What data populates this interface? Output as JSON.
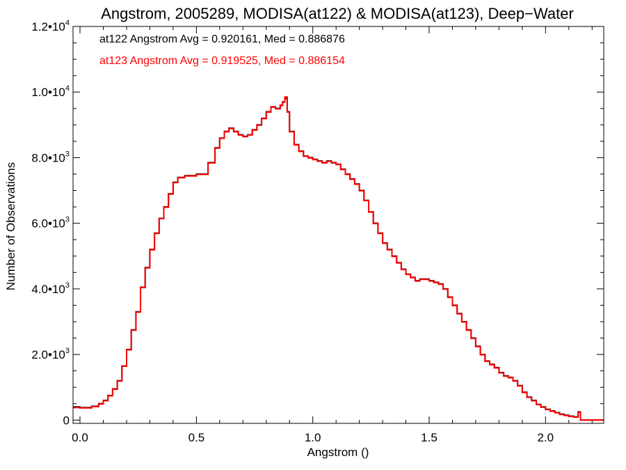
{
  "chart_data": {
    "type": "line",
    "step": true,
    "title": "Angstrom, 2005289, MODISA(at122) & MODISA(at123), Deep−Water",
    "xlabel": "Angstrom ()",
    "ylabel": "Number of Observations",
    "xlim": [
      -0.03,
      2.25
    ],
    "ylim": [
      -100,
      12000
    ],
    "x_ticks": [
      {
        "value": 0.0,
        "label": "0.0"
      },
      {
        "value": 0.5,
        "label": "0.5"
      },
      {
        "value": 1.0,
        "label": "1.0"
      },
      {
        "value": 1.5,
        "label": "1.5"
      },
      {
        "value": 2.0,
        "label": "2.0"
      }
    ],
    "y_ticks": [
      {
        "value": 0,
        "label": "0",
        "exp": ""
      },
      {
        "value": 2000,
        "label": "2.0•10",
        "exp": "3"
      },
      {
        "value": 4000,
        "label": "4.0•10",
        "exp": "3"
      },
      {
        "value": 6000,
        "label": "6.0•10",
        "exp": "3"
      },
      {
        "value": 8000,
        "label": "8.0•10",
        "exp": "3"
      },
      {
        "value": 10000,
        "label": "1.0•10",
        "exp": "4"
      },
      {
        "value": 12000,
        "label": "1.2•10",
        "exp": "4"
      }
    ],
    "grid": false,
    "legend_position": "top-left",
    "series": [
      {
        "name": "at122",
        "color": "#000000",
        "legend_text": "at122 Angstrom Avg = 0.920161, Med = 0.886876",
        "x": [
          -0.03,
          0.0,
          0.05,
          0.08,
          0.1,
          0.12,
          0.14,
          0.16,
          0.18,
          0.2,
          0.22,
          0.24,
          0.26,
          0.28,
          0.3,
          0.32,
          0.34,
          0.36,
          0.38,
          0.4,
          0.42,
          0.45,
          0.5,
          0.55,
          0.58,
          0.6,
          0.62,
          0.64,
          0.66,
          0.68,
          0.7,
          0.72,
          0.74,
          0.76,
          0.78,
          0.8,
          0.82,
          0.84,
          0.86,
          0.87,
          0.88,
          0.89,
          0.9,
          0.92,
          0.94,
          0.96,
          0.98,
          1.0,
          1.02,
          1.04,
          1.06,
          1.08,
          1.1,
          1.12,
          1.14,
          1.16,
          1.18,
          1.2,
          1.22,
          1.24,
          1.26,
          1.28,
          1.3,
          1.32,
          1.34,
          1.36,
          1.38,
          1.4,
          1.42,
          1.44,
          1.46,
          1.48,
          1.5,
          1.52,
          1.54,
          1.56,
          1.58,
          1.6,
          1.62,
          1.64,
          1.66,
          1.68,
          1.7,
          1.72,
          1.74,
          1.76,
          1.78,
          1.8,
          1.82,
          1.84,
          1.86,
          1.88,
          1.9,
          1.92,
          1.94,
          1.96,
          1.98,
          2.0,
          2.02,
          2.04,
          2.06,
          2.08,
          2.1,
          2.12,
          2.14,
          2.15,
          2.16,
          2.18,
          2.2,
          2.25
        ],
        "y": [
          400,
          380,
          420,
          500,
          600,
          750,
          950,
          1200,
          1650,
          2150,
          2750,
          3300,
          4050,
          4650,
          5200,
          5700,
          6150,
          6500,
          6900,
          7250,
          7400,
          7450,
          7500,
          7850,
          8300,
          8600,
          8800,
          8900,
          8800,
          8700,
          8650,
          8700,
          8850,
          9000,
          9200,
          9400,
          9550,
          9500,
          9600,
          9700,
          9800,
          9400,
          8800,
          8400,
          8200,
          8050,
          8000,
          7950,
          7900,
          7850,
          7900,
          7850,
          7800,
          7650,
          7500,
          7350,
          7200,
          7000,
          6700,
          6350,
          6000,
          5700,
          5400,
          5200,
          5000,
          4800,
          4600,
          4450,
          4350,
          4250,
          4300,
          4300,
          4250,
          4200,
          4150,
          4000,
          3750,
          3500,
          3250,
          3000,
          2750,
          2500,
          2250,
          2000,
          1800,
          1700,
          1600,
          1450,
          1350,
          1300,
          1200,
          1050,
          850,
          700,
          600,
          480,
          400,
          330,
          280,
          230,
          180,
          150,
          120,
          100,
          250,
          0,
          0,
          0,
          0,
          0
        ]
      },
      {
        "name": "at123",
        "color": "#ff0000",
        "legend_text": "at123 Angstrom Avg = 0.919525, Med = 0.886154",
        "x": [
          -0.03,
          0.0,
          0.05,
          0.08,
          0.1,
          0.12,
          0.14,
          0.16,
          0.18,
          0.2,
          0.22,
          0.24,
          0.26,
          0.28,
          0.3,
          0.32,
          0.34,
          0.36,
          0.38,
          0.4,
          0.42,
          0.45,
          0.5,
          0.55,
          0.58,
          0.6,
          0.62,
          0.64,
          0.66,
          0.68,
          0.7,
          0.72,
          0.74,
          0.76,
          0.78,
          0.8,
          0.82,
          0.84,
          0.86,
          0.87,
          0.88,
          0.89,
          0.9,
          0.92,
          0.94,
          0.96,
          0.98,
          1.0,
          1.02,
          1.04,
          1.06,
          1.08,
          1.1,
          1.12,
          1.14,
          1.16,
          1.18,
          1.2,
          1.22,
          1.24,
          1.26,
          1.28,
          1.3,
          1.32,
          1.34,
          1.36,
          1.38,
          1.4,
          1.42,
          1.44,
          1.46,
          1.48,
          1.5,
          1.52,
          1.54,
          1.56,
          1.58,
          1.6,
          1.62,
          1.64,
          1.66,
          1.68,
          1.7,
          1.72,
          1.74,
          1.76,
          1.78,
          1.8,
          1.82,
          1.84,
          1.86,
          1.88,
          1.9,
          1.92,
          1.94,
          1.96,
          1.98,
          2.0,
          2.02,
          2.04,
          2.06,
          2.08,
          2.1,
          2.12,
          2.14,
          2.15,
          2.16,
          2.18,
          2.2,
          2.25
        ],
        "y": [
          380,
          370,
          410,
          490,
          590,
          740,
          940,
          1190,
          1640,
          2140,
          2740,
          3290,
          4040,
          4640,
          5190,
          5690,
          6140,
          6490,
          6890,
          7240,
          7390,
          7440,
          7490,
          7840,
          8290,
          8590,
          8790,
          8890,
          8790,
          8690,
          8640,
          8690,
          8840,
          8990,
          9190,
          9390,
          9540,
          9490,
          9590,
          9690,
          9850,
          9390,
          8790,
          8390,
          8190,
          8040,
          7990,
          7940,
          7890,
          7840,
          7890,
          7840,
          7790,
          7640,
          7490,
          7340,
          7190,
          6990,
          6690,
          6340,
          5990,
          5690,
          5390,
          5190,
          4990,
          4790,
          4590,
          4440,
          4340,
          4240,
          4290,
          4290,
          4240,
          4190,
          4140,
          3990,
          3740,
          3490,
          3240,
          2990,
          2740,
          2490,
          2240,
          1990,
          1790,
          1690,
          1590,
          1440,
          1340,
          1290,
          1190,
          1040,
          840,
          690,
          590,
          470,
          390,
          320,
          270,
          220,
          170,
          140,
          110,
          90,
          240,
          0,
          0,
          0,
          0,
          0
        ]
      }
    ]
  }
}
